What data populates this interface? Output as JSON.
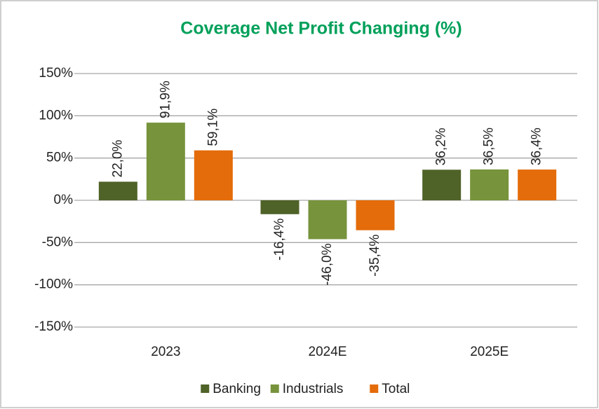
{
  "chart_data": {
    "type": "bar",
    "title": "Coverage Net Profit Changing (%)",
    "categories": [
      "2023",
      "2024E",
      "2025E"
    ],
    "series": [
      {
        "name": "Banking",
        "color": "#4f6228",
        "values": [
          22.0,
          -16.4,
          36.2
        ],
        "value_labels": [
          "22,0%",
          "-16,4%",
          "36,2%"
        ]
      },
      {
        "name": "Industrials",
        "color": "#77933c",
        "values": [
          91.9,
          -46.0,
          36.5
        ],
        "value_labels": [
          "91,9%",
          "-46,0%",
          "36,5%"
        ]
      },
      {
        "name": "Total",
        "color": "#e46c0a",
        "values": [
          59.1,
          -35.4,
          36.4
        ],
        "value_labels": [
          "59,1%",
          "-35,4%",
          "36,4%"
        ]
      }
    ],
    "ylim": [
      -150,
      150
    ],
    "yticks": [
      {
        "value": -150,
        "label": "-150%"
      },
      {
        "value": -100,
        "label": "-100%"
      },
      {
        "value": -50,
        "label": "-50%"
      },
      {
        "value": 0,
        "label": "0%"
      },
      {
        "value": 50,
        "label": "50%"
      },
      {
        "value": 100,
        "label": "100%"
      },
      {
        "value": 150,
        "label": "150%"
      }
    ],
    "grid": true,
    "legend": "bottom"
  }
}
